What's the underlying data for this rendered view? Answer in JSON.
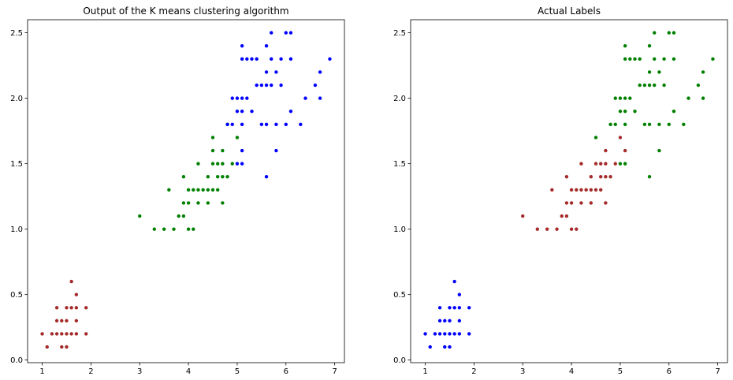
{
  "chart_data": [
    {
      "type": "scatter",
      "title": "Output of the K means clustering algorithm",
      "xlabel": "",
      "ylabel": "",
      "xlim": [
        0.7,
        7.2
      ],
      "ylim": [
        -0.02,
        2.6
      ],
      "xticks": [
        "1",
        "2",
        "3",
        "4",
        "5",
        "6",
        "7"
      ],
      "yticks": [
        "0.0",
        "0.5",
        "1.0",
        "1.5",
        "2.0",
        "2.5"
      ],
      "grid": false,
      "series": [
        {
          "color": "#a52a2a",
          "points": [
            [
              1.0,
              0.2
            ],
            [
              1.1,
              0.1
            ],
            [
              1.2,
              0.2
            ],
            [
              1.3,
              0.2
            ],
            [
              1.3,
              0.3
            ],
            [
              1.3,
              0.4
            ],
            [
              1.4,
              0.1
            ],
            [
              1.4,
              0.2
            ],
            [
              1.4,
              0.3
            ],
            [
              1.5,
              0.1
            ],
            [
              1.5,
              0.2
            ],
            [
              1.5,
              0.3
            ],
            [
              1.5,
              0.4
            ],
            [
              1.6,
              0.2
            ],
            [
              1.6,
              0.4
            ],
            [
              1.6,
              0.6
            ],
            [
              1.7,
              0.2
            ],
            [
              1.7,
              0.3
            ],
            [
              1.7,
              0.4
            ],
            [
              1.7,
              0.5
            ],
            [
              1.9,
              0.2
            ],
            [
              1.9,
              0.4
            ]
          ]
        },
        {
          "color": "#008000",
          "points": [
            [
              3.0,
              1.1
            ],
            [
              3.3,
              1.0
            ],
            [
              3.5,
              1.0
            ],
            [
              3.6,
              1.3
            ],
            [
              3.7,
              1.0
            ],
            [
              3.8,
              1.1
            ],
            [
              3.9,
              1.1
            ],
            [
              3.9,
              1.2
            ],
            [
              3.9,
              1.4
            ],
            [
              4.0,
              1.0
            ],
            [
              4.0,
              1.2
            ],
            [
              4.0,
              1.3
            ],
            [
              4.1,
              1.0
            ],
            [
              4.1,
              1.3
            ],
            [
              4.2,
              1.2
            ],
            [
              4.2,
              1.3
            ],
            [
              4.2,
              1.5
            ],
            [
              4.3,
              1.3
            ],
            [
              4.4,
              1.2
            ],
            [
              4.4,
              1.3
            ],
            [
              4.4,
              1.4
            ],
            [
              4.5,
              1.3
            ],
            [
              4.5,
              1.5
            ],
            [
              4.5,
              1.6
            ],
            [
              4.5,
              1.7
            ],
            [
              4.6,
              1.3
            ],
            [
              4.6,
              1.4
            ],
            [
              4.6,
              1.5
            ],
            [
              4.7,
              1.2
            ],
            [
              4.7,
              1.4
            ],
            [
              4.7,
              1.5
            ],
            [
              4.7,
              1.6
            ],
            [
              4.8,
              1.4
            ],
            [
              4.8,
              1.8
            ],
            [
              4.9,
              1.5
            ],
            [
              5.0,
              1.7
            ]
          ]
        },
        {
          "color": "#0000ff",
          "points": [
            [
              4.8,
              1.8
            ],
            [
              4.9,
              1.8
            ],
            [
              4.9,
              2.0
            ],
            [
              5.0,
              1.5
            ],
            [
              5.0,
              1.9
            ],
            [
              5.0,
              2.0
            ],
            [
              5.1,
              1.5
            ],
            [
              5.1,
              1.6
            ],
            [
              5.1,
              1.8
            ],
            [
              5.1,
              1.9
            ],
            [
              5.1,
              2.0
            ],
            [
              5.1,
              2.3
            ],
            [
              5.1,
              2.4
            ],
            [
              5.2,
              2.0
            ],
            [
              5.2,
              2.3
            ],
            [
              5.3,
              1.9
            ],
            [
              5.3,
              2.3
            ],
            [
              5.4,
              2.1
            ],
            [
              5.4,
              2.3
            ],
            [
              5.5,
              1.8
            ],
            [
              5.5,
              2.1
            ],
            [
              5.6,
              1.4
            ],
            [
              5.6,
              1.8
            ],
            [
              5.6,
              2.1
            ],
            [
              5.6,
              2.2
            ],
            [
              5.6,
              2.4
            ],
            [
              5.7,
              2.1
            ],
            [
              5.7,
              2.3
            ],
            [
              5.7,
              2.5
            ],
            [
              5.8,
              1.6
            ],
            [
              5.8,
              1.8
            ],
            [
              5.8,
              2.2
            ],
            [
              5.9,
              2.1
            ],
            [
              5.9,
              2.3
            ],
            [
              6.0,
              1.8
            ],
            [
              6.0,
              2.5
            ],
            [
              6.1,
              1.9
            ],
            [
              6.1,
              2.3
            ],
            [
              6.1,
              2.5
            ],
            [
              6.3,
              1.8
            ],
            [
              6.4,
              2.0
            ],
            [
              6.6,
              2.1
            ],
            [
              6.7,
              2.0
            ],
            [
              6.7,
              2.2
            ],
            [
              6.9,
              2.3
            ]
          ]
        }
      ]
    },
    {
      "type": "scatter",
      "title": "Actual Labels",
      "xlabel": "",
      "ylabel": "",
      "xlim": [
        0.7,
        7.2
      ],
      "ylim": [
        -0.02,
        2.6
      ],
      "xticks": [
        "1",
        "2",
        "3",
        "4",
        "5",
        "6",
        "7"
      ],
      "yticks": [
        "0.0",
        "0.5",
        "1.0",
        "1.5",
        "2.0",
        "2.5"
      ],
      "grid": false,
      "series": [
        {
          "color": "#0000ff",
          "points": [
            [
              1.0,
              0.2
            ],
            [
              1.1,
              0.1
            ],
            [
              1.2,
              0.2
            ],
            [
              1.3,
              0.2
            ],
            [
              1.3,
              0.3
            ],
            [
              1.3,
              0.4
            ],
            [
              1.4,
              0.1
            ],
            [
              1.4,
              0.2
            ],
            [
              1.4,
              0.3
            ],
            [
              1.5,
              0.1
            ],
            [
              1.5,
              0.2
            ],
            [
              1.5,
              0.3
            ],
            [
              1.5,
              0.4
            ],
            [
              1.6,
              0.2
            ],
            [
              1.6,
              0.4
            ],
            [
              1.6,
              0.6
            ],
            [
              1.7,
              0.2
            ],
            [
              1.7,
              0.3
            ],
            [
              1.7,
              0.4
            ],
            [
              1.7,
              0.5
            ],
            [
              1.9,
              0.2
            ],
            [
              1.9,
              0.4
            ]
          ]
        },
        {
          "color": "#a52a2a",
          "points": [
            [
              3.0,
              1.1
            ],
            [
              3.3,
              1.0
            ],
            [
              3.5,
              1.0
            ],
            [
              3.6,
              1.3
            ],
            [
              3.7,
              1.0
            ],
            [
              3.8,
              1.1
            ],
            [
              3.9,
              1.1
            ],
            [
              3.9,
              1.2
            ],
            [
              3.9,
              1.4
            ],
            [
              4.0,
              1.0
            ],
            [
              4.0,
              1.2
            ],
            [
              4.0,
              1.3
            ],
            [
              4.1,
              1.0
            ],
            [
              4.1,
              1.3
            ],
            [
              4.2,
              1.2
            ],
            [
              4.2,
              1.3
            ],
            [
              4.2,
              1.5
            ],
            [
              4.3,
              1.3
            ],
            [
              4.4,
              1.2
            ],
            [
              4.4,
              1.3
            ],
            [
              4.4,
              1.4
            ],
            [
              4.5,
              1.3
            ],
            [
              4.5,
              1.5
            ],
            [
              4.6,
              1.3
            ],
            [
              4.6,
              1.4
            ],
            [
              4.6,
              1.5
            ],
            [
              4.7,
              1.2
            ],
            [
              4.7,
              1.4
            ],
            [
              4.7,
              1.5
            ],
            [
              4.7,
              1.6
            ],
            [
              4.8,
              1.4
            ],
            [
              4.9,
              1.5
            ],
            [
              5.0,
              1.7
            ],
            [
              5.1,
              1.6
            ]
          ]
        },
        {
          "color": "#008000",
          "points": [
            [
              4.5,
              1.7
            ],
            [
              4.8,
              1.8
            ],
            [
              4.9,
              1.8
            ],
            [
              4.9,
              2.0
            ],
            [
              5.0,
              1.5
            ],
            [
              5.0,
              1.9
            ],
            [
              5.0,
              2.0
            ],
            [
              5.1,
              1.5
            ],
            [
              5.1,
              1.8
            ],
            [
              5.1,
              1.9
            ],
            [
              5.1,
              2.0
            ],
            [
              5.1,
              2.3
            ],
            [
              5.1,
              2.4
            ],
            [
              5.2,
              2.0
            ],
            [
              5.2,
              2.3
            ],
            [
              5.3,
              1.9
            ],
            [
              5.3,
              2.3
            ],
            [
              5.4,
              2.1
            ],
            [
              5.4,
              2.3
            ],
            [
              5.5,
              1.8
            ],
            [
              5.5,
              2.1
            ],
            [
              5.6,
              1.4
            ],
            [
              5.6,
              1.8
            ],
            [
              5.6,
              2.1
            ],
            [
              5.6,
              2.2
            ],
            [
              5.6,
              2.4
            ],
            [
              5.7,
              2.1
            ],
            [
              5.7,
              2.3
            ],
            [
              5.7,
              2.5
            ],
            [
              5.8,
              1.6
            ],
            [
              5.8,
              1.8
            ],
            [
              5.8,
              2.2
            ],
            [
              5.9,
              2.1
            ],
            [
              5.9,
              2.3
            ],
            [
              6.0,
              1.8
            ],
            [
              6.0,
              2.5
            ],
            [
              6.1,
              1.9
            ],
            [
              6.1,
              2.3
            ],
            [
              6.1,
              2.5
            ],
            [
              6.3,
              1.8
            ],
            [
              6.4,
              2.0
            ],
            [
              6.6,
              2.1
            ],
            [
              6.7,
              2.0
            ],
            [
              6.7,
              2.2
            ],
            [
              6.9,
              2.3
            ]
          ]
        }
      ]
    }
  ]
}
